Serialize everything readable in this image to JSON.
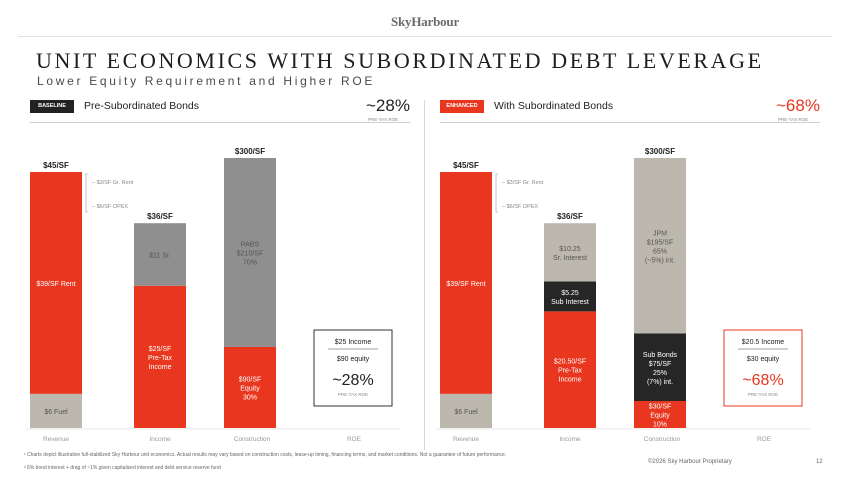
{
  "brand": "SkyHarbour",
  "title": "UNIT ECONOMICS WITH SUBORDINATED DEBT LEVERAGE",
  "subtitle": "Lower Equity Requirement and Higher ROE",
  "panels": [
    {
      "tag": "BASELINE",
      "heading": "Pre-Subordinated Bonds",
      "metric": "~28%",
      "metric_sub": "PRE-TAX ROE"
    },
    {
      "tag": "ENHANCED",
      "heading": "With Subordinated Bonds",
      "metric": "~68%",
      "metric_sub": "PRE-TAX ROE"
    }
  ],
  "chart_data": [
    {
      "type": "bar",
      "stacked": true,
      "categories": [
        "Revenue",
        "Income",
        "Construction",
        "ROE"
      ],
      "ylim": [
        0,
        300
      ],
      "colors": {
        "red": "#e8361f",
        "light": "#bdb8ae",
        "gray": "#8f8f8f",
        "dark": "#262626"
      },
      "bars": [
        {
          "category": "Revenue",
          "top_label": "$45/SF",
          "segments": [
            {
              "value": 6,
              "color": "light",
              "label": "$6 Fuel"
            },
            {
              "value": 39,
              "color": "red",
              "label": "$39/SF Rent"
            }
          ]
        },
        {
          "category": "Income",
          "top_label": "$36/SF",
          "segments": [
            {
              "value": 25,
              "color": "red",
              "label": "$25/SF",
              "sublabel": "Pre-Tax Income"
            },
            {
              "value": 11,
              "color": "gray",
              "label": "$11 Sr."
            }
          ]
        },
        {
          "category": "Construction",
          "top_label": "$300/SF",
          "segments": [
            {
              "value": 90,
              "color": "red",
              "label": "$90/SF",
              "sublabel": "Equity 30%"
            },
            {
              "value": 210,
              "color": "gray",
              "label": "PABS",
              "sublabel": "$210/SF 70%"
            }
          ]
        }
      ],
      "annotations": [
        "– $3/SF Gr. Rent",
        "– $6/SF OPEX"
      ],
      "roe_box": {
        "income": "$25 Income",
        "equity": "$90 equity",
        "value": "~28%",
        "sub": "PRE-TAX ROE"
      }
    },
    {
      "type": "bar",
      "stacked": true,
      "categories": [
        "Revenue",
        "Income",
        "Construction",
        "ROE"
      ],
      "ylim": [
        0,
        300
      ],
      "colors": {
        "red": "#e8361f",
        "light": "#bdb8ae",
        "gray": "#8f8f8f",
        "dark": "#262626"
      },
      "bars": [
        {
          "category": "Revenue",
          "top_label": "$45/SF",
          "segments": [
            {
              "value": 6,
              "color": "light",
              "label": "$6 Fuel"
            },
            {
              "value": 39,
              "color": "red",
              "label": "$39/SF Rent"
            }
          ]
        },
        {
          "category": "Income",
          "top_label": "$36/SF",
          "segments": [
            {
              "value": 20.5,
              "color": "red",
              "label": "$20.50/SF",
              "sublabel": "Pre-Tax Income"
            },
            {
              "value": 5.25,
              "color": "dark",
              "label": "$5.25",
              "sublabel": "Sub Interest"
            },
            {
              "value": 10.25,
              "color": "light",
              "label": "$10.25",
              "sublabel": "Sr. Interest"
            }
          ]
        },
        {
          "category": "Construction",
          "top_label": "$300/SF",
          "segments": [
            {
              "value": 30,
              "color": "red",
              "label": "$30/SF",
              "sublabel": "Equity 10%"
            },
            {
              "value": 75,
              "color": "dark",
              "label": "Sub Bonds",
              "sublabel": "$75/SF 25% (7%) int."
            },
            {
              "value": 195,
              "color": "light",
              "label": "JPM",
              "sublabel": "$195/SF 65% (~5%) int."
            }
          ]
        }
      ],
      "annotations": [
        "– $3/SF Gr. Rent",
        "– $6/SF OPEX"
      ],
      "roe_box": {
        "income": "$20.5 Income",
        "equity": "$30 equity",
        "value": "~68%",
        "sub": "PRE-TAX ROE"
      }
    }
  ],
  "footnotes": [
    "¹ Charts depict illustrative full-stabilized Sky Harbour unit economics. Actual results may vary based on construction costs, lease-up timing, financing terms, and market conditions. Not a guarantee of future performance.",
    "² 6% bond interest + drag of ~1% given capitalized interest and debt service reserve fund"
  ],
  "copyright": "©2026 Sky Harbour Proprietary",
  "page_number": "12"
}
